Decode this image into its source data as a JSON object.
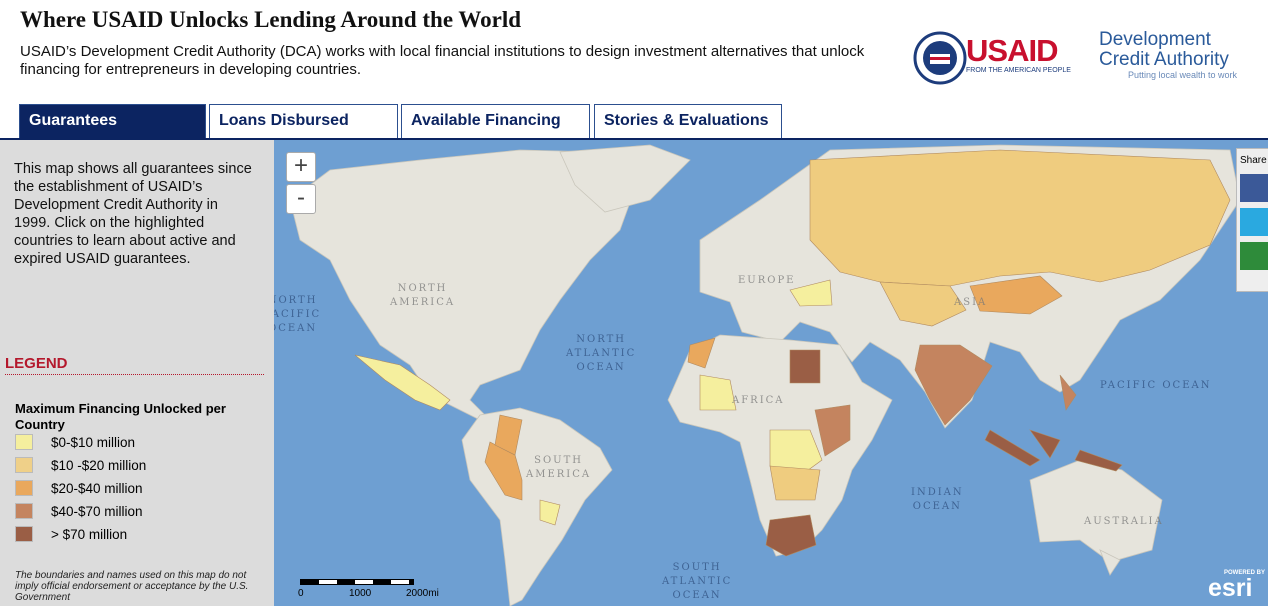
{
  "header": {
    "title": "Where USAID Unlocks Lending Around the World",
    "description": "USAID’s Development Credit Authority (DCA) works with local financial institutions to design investment alternatives that unlock financing for entrepreneurs in developing countries."
  },
  "logos": {
    "usaid": {
      "name": "USAID",
      "tagline": "FROM THE AMERICAN PEOPLE"
    },
    "dca": {
      "name": [
        "Development",
        "Credit Authority"
      ],
      "tagline": "Putting local wealth to work"
    }
  },
  "tabs": [
    "Guarantees",
    "Loans Disbursed",
    "Available Financing",
    "Stories & Evaluations"
  ],
  "sidebar": {
    "intro": "This map shows all guarantees since the establishment of USAID’s Development Credit Authority in 1999. Click on the highlighted countries to learn about active and expired USAID guarantees.",
    "legend_heading": "LEGEND",
    "legend_title": "Maximum Financing Unlocked per Country",
    "legend": [
      {
        "label": "$0-$10 million",
        "color": "#f5ef9e"
      },
      {
        "label": "$10 -$20 million",
        "color": "#efd089"
      },
      {
        "label": "$20-$40 million",
        "color": "#e9a85d"
      },
      {
        "label": "$40-$70 million",
        "color": "#c4845f"
      },
      {
        "label": "> $70 million",
        "color": "#9a5e45"
      }
    ],
    "disclaimer": "The boundaries and names used on this map do not imply official endorsement or acceptance by the U.S. Government"
  },
  "map": {
    "zoom_in": "+",
    "zoom_out": "-",
    "labels": [
      [
        "NORTH",
        "AMERICA"
      ],
      [
        "NORTH",
        "PACIFIC",
        "OCEAN"
      ],
      [
        "NORTH",
        "ATLANTIC",
        "OCEAN"
      ],
      [
        "EUROPE"
      ],
      [
        "ASIA"
      ],
      [
        "AFRICA"
      ],
      [
        "SOUTH",
        "AMERICA"
      ],
      [
        "INDIAN",
        "OCEAN"
      ],
      [
        "SOUTH",
        "ATLANTIC",
        "OCEAN"
      ],
      [
        "PACIFIC OCEAN"
      ],
      [
        "AUSTRALIA"
      ]
    ],
    "scale": [
      "0",
      "1000",
      "2000mi"
    ],
    "share": "Share",
    "esri": {
      "powered": "POWERED BY",
      "name": "esri"
    }
  }
}
